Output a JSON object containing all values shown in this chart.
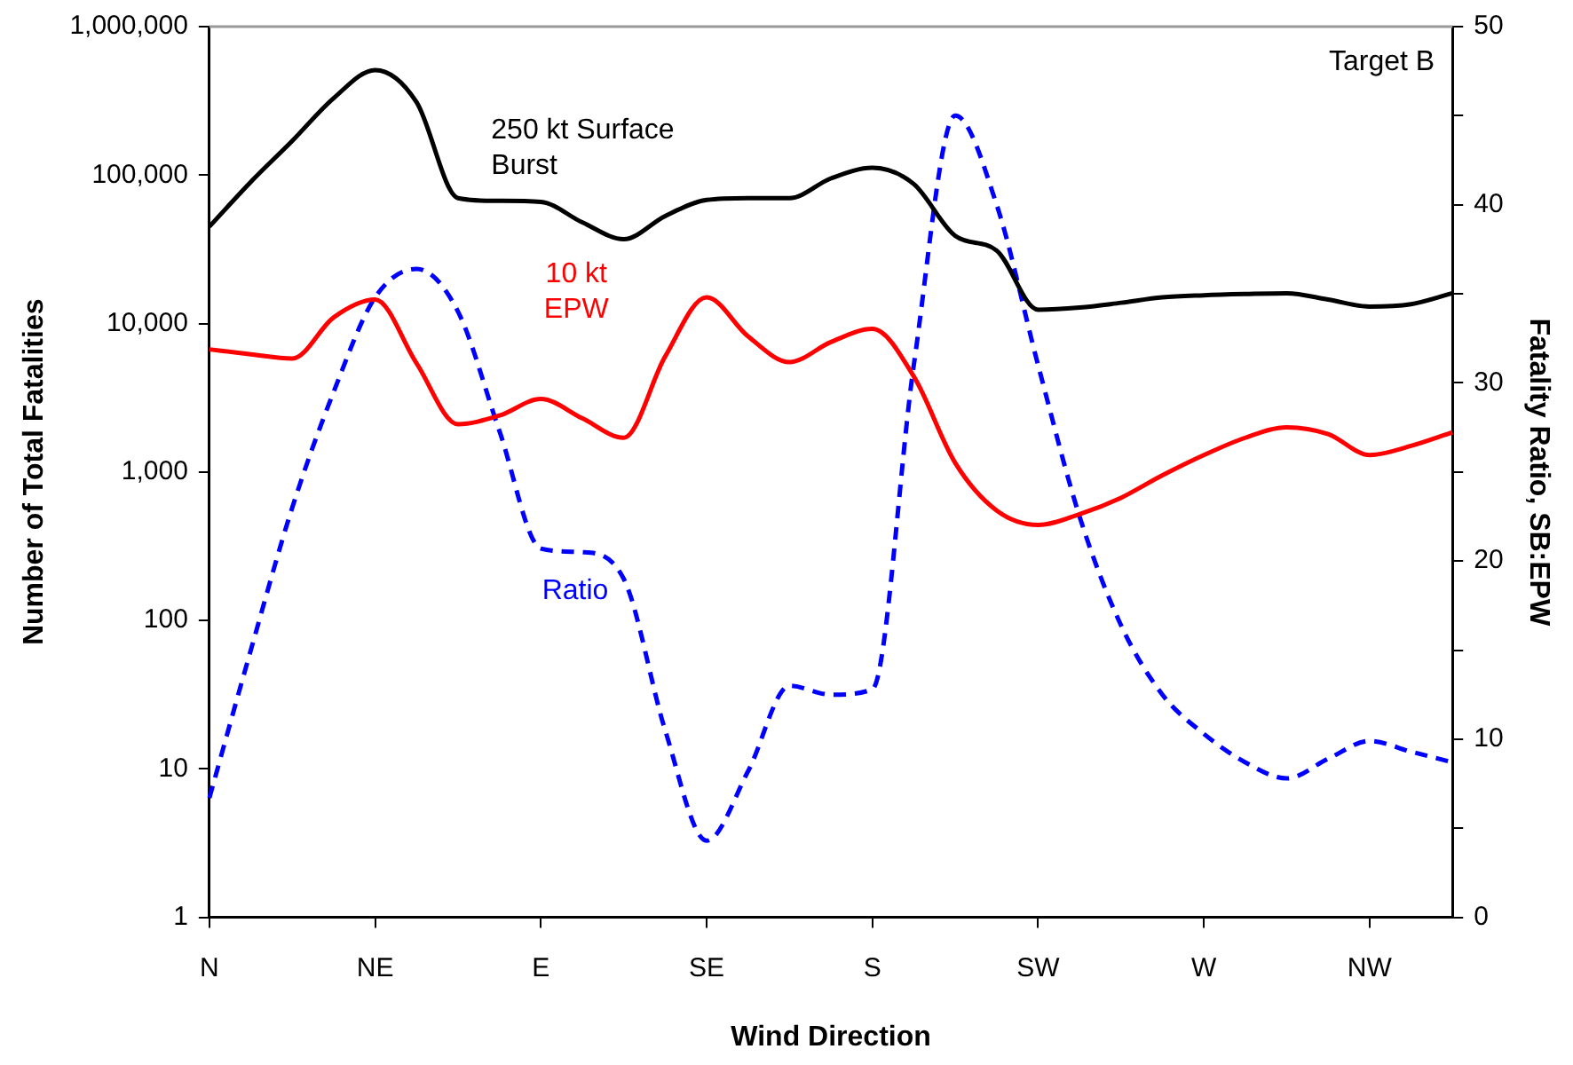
{
  "chart_data": {
    "type": "line",
    "xlabel": "Wind Direction",
    "ylabel": "Number of Total Fatalities",
    "y2label": "Fatality Ratio, SB:EPW",
    "annotations": [
      "Target B"
    ],
    "log": "y",
    "grid": false,
    "legend": false,
    "marker": "none",
    "categories": [
      "N",
      null,
      null,
      null,
      "NE",
      null,
      null,
      null,
      "E",
      null,
      null,
      null,
      "SE",
      null,
      null,
      null,
      "S",
      null,
      null,
      null,
      "SW",
      null,
      null,
      null,
      "W",
      null,
      null,
      null,
      "NW",
      null,
      null
    ],
    "ylim": [
      1,
      1000000
    ],
    "yticks": [
      {
        "value": 1,
        "label": "1"
      },
      {
        "value": 10,
        "label": "10"
      },
      {
        "value": 100,
        "label": "100"
      },
      {
        "value": 1000,
        "label": "1,000"
      },
      {
        "value": 10000,
        "label": "10,000"
      },
      {
        "value": 100000,
        "label": "100,000"
      },
      {
        "value": 1000000,
        "label": "1,000,000"
      }
    ],
    "y2lim": [
      0,
      50
    ],
    "y2ticks": [
      0,
      {
        "value": 5,
        "label": null
      },
      10,
      {
        "value": 15,
        "label": null
      },
      20,
      {
        "value": 25,
        "label": null
      },
      30,
      {
        "value": 35,
        "label": null
      },
      40,
      {
        "value": 45,
        "label": null
      },
      50
    ],
    "series": [
      {
        "name": "250 kt Surface Burst",
        "color": "#000000",
        "line_style": "solid",
        "values": [
          45000,
          90000,
          170000,
          330000,
          510000,
          310000,
          70000,
          67000,
          66000,
          48000,
          37000,
          53000,
          68000,
          70000,
          70000,
          95000,
          112000,
          87000,
          39000,
          31000,
          12400,
          12800,
          13800,
          15000,
          15500,
          15800,
          16000,
          14500,
          13000,
          13500,
          16000
        ]
      },
      {
        "name": "10 kt EPW",
        "color": "#ff0000",
        "line_style": "solid",
        "values": [
          6700,
          6200,
          5800,
          11000,
          14500,
          5400,
          2100,
          2400,
          3100,
          2300,
          1700,
          6000,
          15000,
          8200,
          5500,
          7500,
          9200,
          4400,
          1150,
          550,
          440,
          520,
          670,
          950,
          1300,
          1700,
          2000,
          1800,
          1300,
          1500,
          1850
        ]
      },
      {
        "name": "Ratio",
        "color": "#0000ff",
        "axis": "y2",
        "line_style": "dashed",
        "values": [
          6.7,
          15,
          23,
          29.5,
          34.8,
          36.4,
          34,
          27.3,
          20.7,
          20.5,
          19,
          10.5,
          4.3,
          8.2,
          13,
          12.5,
          12.8,
          31,
          45,
          40,
          31,
          22.5,
          16.4,
          12.5,
          10.3,
          8.7,
          7.8,
          8.9,
          9.9,
          9.3,
          8.7
        ]
      }
    ]
  }
}
